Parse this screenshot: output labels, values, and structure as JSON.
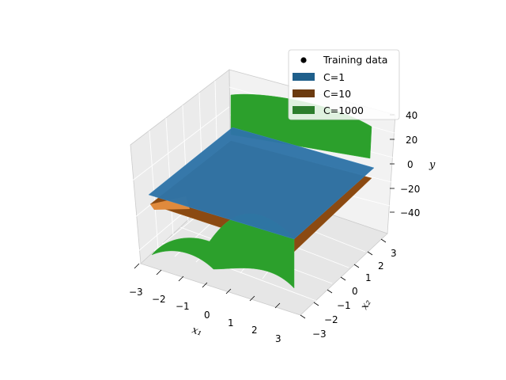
{
  "chart_data": {
    "type": "surface",
    "title": "",
    "xlabel": "x₁",
    "ylabel": "x₂",
    "zlabel": "y",
    "xlim": [
      -3.3,
      3.3
    ],
    "ylim": [
      -3.3,
      3.3
    ],
    "zlim": [
      -50,
      45
    ],
    "xticks": [
      "−3",
      "−2",
      "−1",
      "0",
      "1",
      "2",
      "3"
    ],
    "yticks": [
      "−3",
      "−2",
      "−1",
      "0",
      "1",
      "2",
      "3"
    ],
    "zticks": [
      "40",
      "20",
      "0",
      "−20",
      "−40"
    ],
    "grid": true,
    "legend_position": "top-right",
    "series": [
      {
        "name": "Training data",
        "kind": "scatter",
        "color": "#000000"
      },
      {
        "name": "C=1",
        "kind": "surface",
        "color": "#1f5f8b",
        "z_range": [
          -15,
          15
        ]
      },
      {
        "name": "C=10",
        "kind": "surface",
        "color": "#6b3a0f",
        "z_range": [
          -25,
          25
        ]
      },
      {
        "name": "C=1000",
        "kind": "surface",
        "color": "#2ca02c",
        "z_range": [
          -45,
          45
        ]
      }
    ]
  }
}
